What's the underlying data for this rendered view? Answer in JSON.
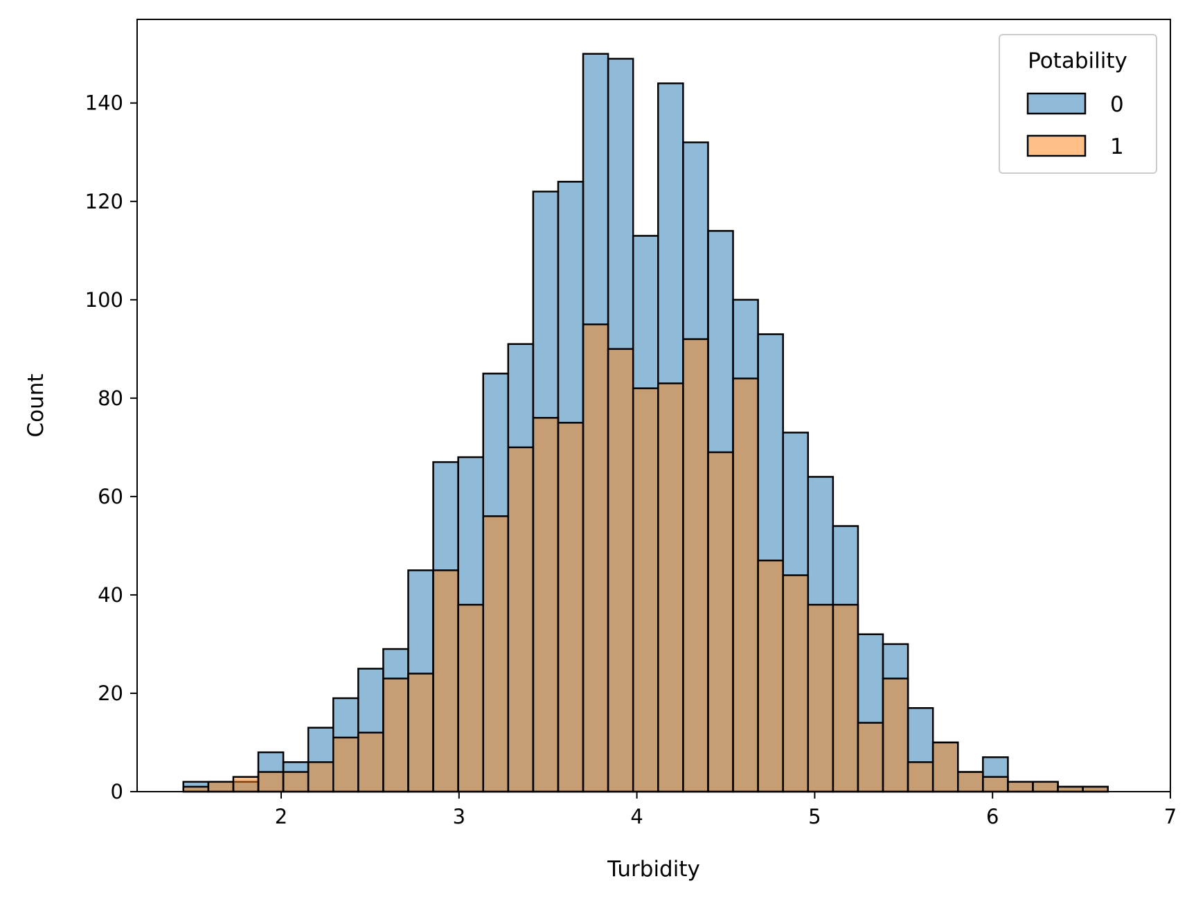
{
  "chart_data": {
    "type": "bar",
    "subtype": "histogram",
    "title": "",
    "xlabel": "Turbidity",
    "ylabel": "Count",
    "xlim": [
      1.19,
      7.0
    ],
    "ylim": [
      0,
      157
    ],
    "xticks": [
      2,
      3,
      4,
      5,
      6,
      7
    ],
    "yticks": [
      0,
      20,
      40,
      60,
      80,
      100,
      120,
      140
    ],
    "grid": false,
    "legend": {
      "title": "Potability",
      "position": "top-right"
    },
    "bins": {
      "start": 1.45,
      "width": 0.1405,
      "count": 37
    },
    "series": [
      {
        "name": "0",
        "color": "#1f77b4",
        "values": [
          2,
          2,
          2,
          8,
          6,
          13,
          19,
          25,
          29,
          45,
          67,
          68,
          85,
          91,
          122,
          124,
          150,
          149,
          113,
          144,
          132,
          114,
          100,
          93,
          73,
          64,
          54,
          32,
          30,
          17,
          10,
          4,
          7,
          2,
          2,
          1,
          1
        ]
      },
      {
        "name": "1",
        "color": "#ff7f0e",
        "values": [
          1,
          2,
          3,
          4,
          4,
          6,
          11,
          12,
          23,
          24,
          45,
          38,
          56,
          70,
          76,
          75,
          95,
          90,
          82,
          83,
          92,
          69,
          84,
          47,
          44,
          38,
          38,
          14,
          23,
          6,
          10,
          4,
          3,
          2,
          2,
          1,
          1
        ]
      }
    ]
  }
}
